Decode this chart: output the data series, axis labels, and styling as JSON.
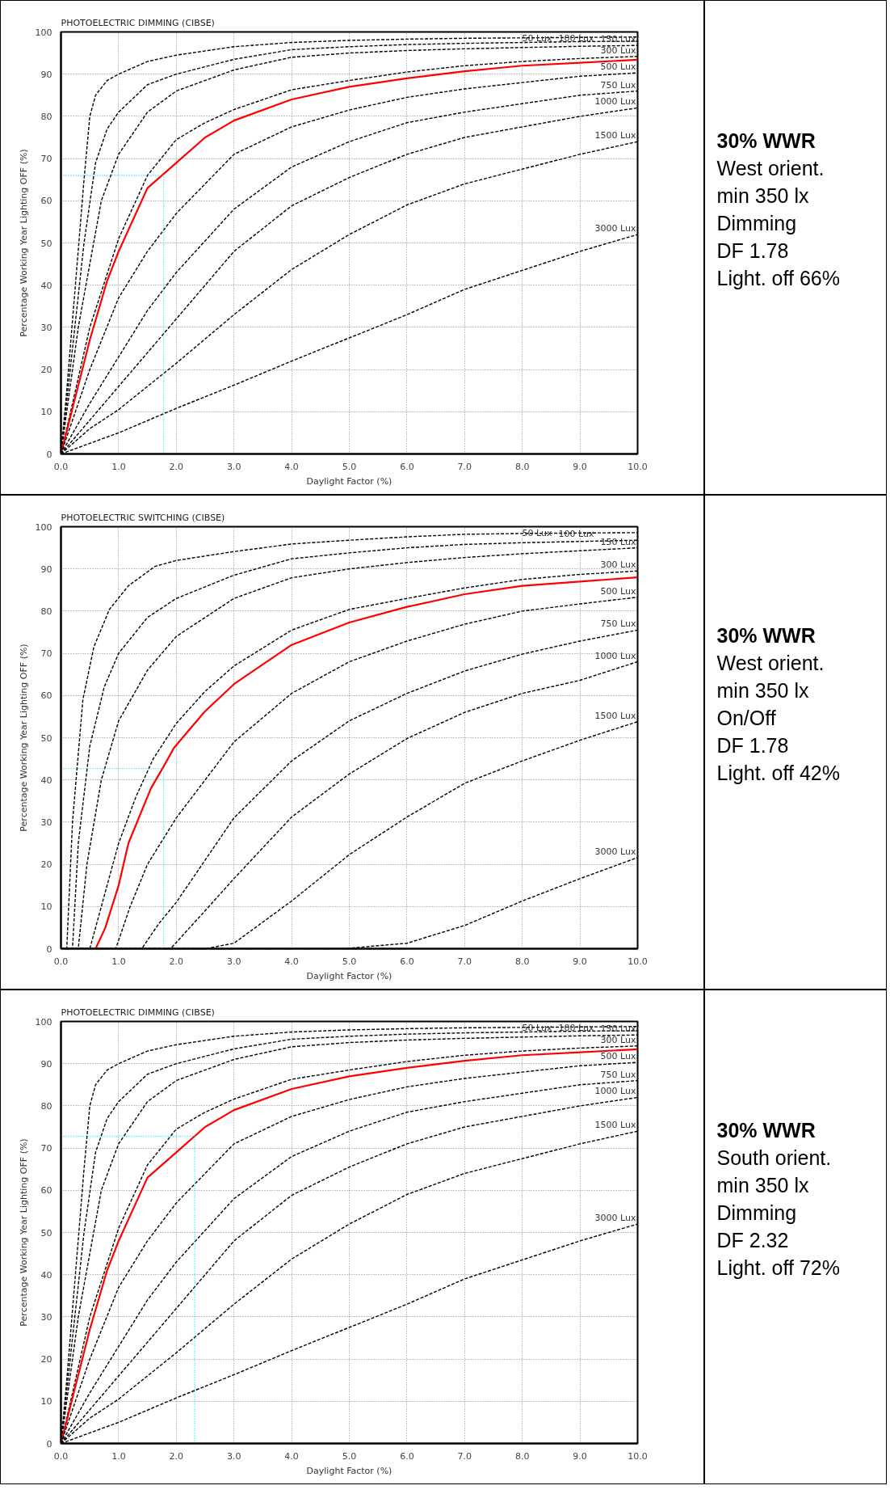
{
  "chart_data": [
    {
      "type": "line",
      "title": "PHOTOELECTRIC DIMMING (CIBSE)",
      "xlabel": "Daylight Factor (%)",
      "ylabel": "Percentage Working Year Lighting OFF (%)",
      "xlim": [
        0,
        10
      ],
      "ylim": [
        0,
        100
      ],
      "xticks": [
        {
          "value": 0,
          "label": "0.0"
        },
        {
          "value": 1,
          "label": "1.0"
        },
        {
          "value": 2,
          "label": "2.0"
        },
        {
          "value": 3,
          "label": "3.0"
        },
        {
          "value": 4,
          "label": "4.0"
        },
        {
          "value": 5,
          "label": "5.0"
        },
        {
          "value": 6,
          "label": "6.0"
        },
        {
          "value": 7,
          "label": "7.0"
        },
        {
          "value": 8,
          "label": "8.0"
        },
        {
          "value": 9,
          "label": "9.0"
        },
        {
          "value": 10,
          "label": "10.0"
        }
      ],
      "yticks": [
        0,
        10,
        20,
        30,
        40,
        50,
        60,
        70,
        80,
        90,
        100
      ],
      "grid": true,
      "series": [
        {
          "name": "50 Lux",
          "color": "#000000",
          "line_style": "dashed",
          "x": [
            0,
            0.1,
            0.25,
            0.4,
            0.5,
            0.6,
            0.8,
            1,
            1.5,
            2,
            3,
            4,
            5,
            6,
            7,
            8,
            9,
            10
          ],
          "values": [
            0,
            15,
            40,
            65,
            80,
            85,
            88.5,
            90,
            93,
            94.5,
            96.5,
            97.5,
            98,
            98.3,
            98.5,
            98.6,
            98.7,
            98.8
          ]
        },
        {
          "name": "100 Lux",
          "color": "#000000",
          "line_style": "dashed",
          "x": [
            0,
            0.2,
            0.4,
            0.6,
            0.8,
            1,
            1.5,
            2,
            3,
            4,
            5,
            6,
            7,
            8,
            9,
            10
          ],
          "values": [
            0,
            25,
            50,
            69,
            77,
            81,
            87.5,
            90,
            93.5,
            95.8,
            96.5,
            97,
            97.3,
            97.5,
            97.7,
            97.8
          ]
        },
        {
          "name": "150 Lux",
          "color": "#000000",
          "line_style": "dashed",
          "x": [
            0,
            0.3,
            0.5,
            0.7,
            1,
            1.5,
            2,
            3,
            4,
            5,
            6,
            7,
            8,
            9,
            10
          ],
          "values": [
            0,
            30,
            45,
            60,
            71,
            81,
            86,
            91,
            94,
            95,
            95.6,
            96,
            96.3,
            96.6,
            96.8
          ]
        },
        {
          "name": "300 Lux",
          "color": "#000000",
          "line_style": "dashed",
          "x": [
            0,
            0.5,
            1,
            1.5,
            2,
            2.5,
            3,
            4,
            5,
            6,
            7,
            8,
            9,
            10
          ],
          "values": [
            0,
            30,
            51,
            66,
            74.5,
            78.5,
            81.6,
            86.3,
            88.5,
            90.5,
            92,
            93,
            93.7,
            94.2
          ]
        },
        {
          "color": "#ff0000",
          "line_style": "solid",
          "x": [
            0,
            0.5,
            0.8,
            1,
            1.2,
            1.5,
            2,
            2.5,
            3,
            4,
            5,
            6,
            7,
            8,
            9,
            10
          ],
          "values": [
            0,
            27,
            41,
            48,
            54,
            63,
            69,
            75,
            79,
            84,
            87,
            89,
            90.7,
            92,
            92.7,
            93.4
          ]
        },
        {
          "name": "500 Lux",
          "color": "#000000",
          "line_style": "dashed",
          "x": [
            0,
            0.5,
            1,
            1.5,
            2,
            3,
            4,
            5,
            6,
            7,
            8,
            9,
            10
          ],
          "values": [
            0,
            20,
            37,
            48,
            57,
            71,
            77.5,
            81.5,
            84.5,
            86.5,
            88,
            89.5,
            90.3
          ]
        },
        {
          "name": "750 Lux",
          "color": "#000000",
          "line_style": "dashed",
          "x": [
            0,
            0.5,
            1,
            1.5,
            2,
            3,
            4,
            5,
            6,
            7,
            8,
            9,
            10
          ],
          "values": [
            0,
            12,
            23,
            34,
            43,
            58,
            68,
            74,
            78.5,
            81,
            83,
            85,
            86
          ]
        },
        {
          "name": "1000 Lux",
          "color": "#000000",
          "line_style": "dashed",
          "x": [
            0,
            0.5,
            1,
            1.5,
            2,
            3,
            4,
            5,
            6,
            7,
            8,
            9,
            10
          ],
          "values": [
            0,
            8,
            16,
            24,
            32,
            48,
            58.8,
            65.5,
            71,
            75,
            77.5,
            80,
            82
          ]
        },
        {
          "name": "1500 Lux",
          "color": "#000000",
          "line_style": "dashed",
          "x": [
            0,
            0.5,
            1,
            1.5,
            2,
            3,
            4,
            5,
            6,
            7,
            8,
            9,
            10
          ],
          "values": [
            0,
            6,
            10.5,
            16,
            21.5,
            33,
            43.7,
            52,
            59,
            64,
            67.5,
            71,
            74
          ]
        },
        {
          "name": "3000 Lux",
          "color": "#000000",
          "line_style": "dashed",
          "x": [
            0,
            0.5,
            1,
            2,
            3,
            4,
            5,
            6,
            7,
            8,
            9,
            10
          ],
          "values": [
            0,
            2.5,
            5,
            10.8,
            16.3,
            22,
            27.5,
            33,
            39,
            43.5,
            48,
            52
          ]
        }
      ],
      "ref_lines": [
        {
          "axis": "x",
          "value": 1.78,
          "color": "#00e5ee",
          "line_style": "dotted"
        },
        {
          "axis": "y",
          "value": 66,
          "color": "#00e5ee",
          "line_style": "dotted"
        }
      ]
    },
    {
      "type": "other",
      "title": "30% WWR",
      "annotations": [
        "West orient.",
        "min 350 lx",
        "Dimming",
        "DF 1.78",
        "Light. off 66%"
      ]
    },
    {
      "type": "line",
      "title": "PHOTOELECTRIC SWITCHING (CIBSE)",
      "xlabel": "Daylight Factor (%)",
      "ylabel": "Percentage Working Year Lighting OFF (%)",
      "xlim": [
        0,
        10
      ],
      "ylim": [
        0,
        100
      ],
      "xticks": [
        {
          "value": 0,
          "label": "0.0"
        },
        {
          "value": 1,
          "label": "1.0"
        },
        {
          "value": 2,
          "label": "2.0"
        },
        {
          "value": 3,
          "label": "3.0"
        },
        {
          "value": 4,
          "label": "4.0"
        },
        {
          "value": 5,
          "label": "5.0"
        },
        {
          "value": 6,
          "label": "6.0"
        },
        {
          "value": 7,
          "label": "7.0"
        },
        {
          "value": 8,
          "label": "8.0"
        },
        {
          "value": 9,
          "label": "9.0"
        },
        {
          "value": 10,
          "label": "10.0"
        }
      ],
      "yticks": [
        0,
        10,
        20,
        30,
        40,
        50,
        60,
        70,
        80,
        90,
        100
      ],
      "grid": true,
      "series": [
        {
          "name": "50 Lux",
          "color": "#000000",
          "line_style": "dashed",
          "x": [
            0,
            0.1,
            0.2,
            0.38,
            0.57,
            0.84,
            1.17,
            1.63,
            2,
            3,
            4,
            5,
            6,
            7,
            8,
            9,
            10
          ],
          "values": [
            0,
            0,
            30,
            59,
            71.5,
            80.4,
            86,
            90.6,
            92,
            94.1,
            95.9,
            96.8,
            97.6,
            98.2,
            98.4,
            98.5,
            98.6
          ]
        },
        {
          "name": "100 Lux",
          "color": "#000000",
          "line_style": "dashed",
          "x": [
            0,
            0.2,
            0.3,
            0.5,
            0.75,
            1,
            1.5,
            2,
            3,
            4,
            5,
            6,
            7,
            8,
            9,
            10
          ],
          "values": [
            0,
            0,
            25,
            48,
            62,
            70,
            78.5,
            83,
            88.5,
            92.4,
            93.8,
            95,
            95.8,
            96.2,
            96.5,
            96.8
          ]
        },
        {
          "name": "150 Lux",
          "color": "#000000",
          "line_style": "dashed",
          "x": [
            0,
            0.3,
            0.45,
            0.7,
            1,
            1.5,
            2,
            3,
            4,
            5,
            6,
            7,
            8,
            9,
            10
          ],
          "values": [
            0,
            0,
            20,
            40,
            54,
            66,
            74,
            83,
            87.9,
            90,
            91.5,
            92.7,
            93.6,
            94.3,
            95
          ]
        },
        {
          "name": "300 Lux",
          "color": "#000000",
          "line_style": "dashed",
          "x": [
            0,
            0.5,
            0.7,
            1,
            1.3,
            1.6,
            2,
            2.5,
            3,
            4,
            5,
            6,
            7,
            8,
            9,
            10
          ],
          "values": [
            0,
            0,
            10,
            25,
            36,
            45,
            53.4,
            61,
            67,
            75.5,
            80.4,
            83,
            85.5,
            87.5,
            88.7,
            89.5
          ]
        },
        {
          "color": "#ff0000",
          "line_style": "solid",
          "x": [
            0,
            0.6,
            0.77,
            1,
            1.17,
            1.56,
            1.76,
            1.96,
            2.48,
            3,
            4,
            5,
            6,
            7,
            8,
            9,
            10
          ],
          "values": [
            0,
            0,
            5,
            15,
            25,
            38,
            42.7,
            47.6,
            56,
            62.7,
            72,
            77.3,
            81,
            84,
            86,
            87,
            88
          ]
        },
        {
          "name": "500 Lux",
          "color": "#000000",
          "line_style": "dashed",
          "x": [
            0,
            0.95,
            1.2,
            1.5,
            2,
            2.5,
            3,
            4,
            5,
            6,
            7,
            8,
            9,
            10
          ],
          "values": [
            0,
            0,
            10,
            20,
            31,
            40,
            49,
            60.5,
            68,
            72.9,
            76.9,
            80,
            81.7,
            83.3
          ]
        },
        {
          "name": "750 Lux",
          "color": "#000000",
          "line_style": "dashed",
          "x": [
            0,
            1.4,
            1.7,
            2,
            2.5,
            3,
            4,
            5,
            6,
            7,
            8,
            9,
            10
          ],
          "values": [
            0,
            0,
            6,
            11,
            21,
            31,
            44.5,
            54,
            60.5,
            65.8,
            69.8,
            72.9,
            75.5
          ]
        },
        {
          "name": "1000 Lux",
          "color": "#000000",
          "line_style": "dashed",
          "x": [
            0,
            1.9,
            2,
            2.5,
            3,
            4,
            5,
            6,
            7,
            8,
            9,
            10
          ],
          "values": [
            0,
            0,
            1.5,
            9,
            16.6,
            31.2,
            41.4,
            49.8,
            56,
            60.5,
            63.6,
            68
          ]
        },
        {
          "name": "1500 Lux",
          "color": "#000000",
          "line_style": "dashed",
          "x": [
            0,
            2.5,
            3,
            4,
            5,
            6,
            7,
            8,
            9,
            10
          ],
          "values": [
            0,
            0,
            1.3,
            11.3,
            22.3,
            31.2,
            39.2,
            44.5,
            49.4,
            53.8
          ]
        },
        {
          "name": "3000 Lux",
          "color": "#000000",
          "line_style": "dashed",
          "x": [
            0,
            4.9,
            6,
            7,
            8,
            9,
            10
          ],
          "values": [
            0,
            0,
            1.3,
            5.5,
            11.3,
            16.6,
            21.6
          ]
        }
      ],
      "ref_lines": [
        {
          "axis": "x",
          "value": 1.78,
          "color": "#00e5ee",
          "line_style": "dotted"
        },
        {
          "axis": "y",
          "value": 42.7,
          "color": "#00e5ee",
          "line_style": "dotted"
        }
      ]
    },
    {
      "type": "other",
      "title": "30% WWR",
      "annotations": [
        "West orient.",
        "min 350 lx",
        "On/Off",
        "DF 1.78",
        "Light. off 42%"
      ]
    },
    {
      "type": "line",
      "title": "PHOTOELECTRIC DIMMING (CIBSE)",
      "xlabel": "Daylight Factor (%)",
      "ylabel": "Percentage Working Year Lighting OFF (%)",
      "xlim": [
        0,
        10
      ],
      "ylim": [
        0,
        100
      ],
      "xticks": [
        {
          "value": 0,
          "label": "0.0"
        },
        {
          "value": 1,
          "label": "1.0"
        },
        {
          "value": 2,
          "label": "2.0"
        },
        {
          "value": 3,
          "label": "3.0"
        },
        {
          "value": 4,
          "label": "4.0"
        },
        {
          "value": 5,
          "label": "5.0"
        },
        {
          "value": 6,
          "label": "6.0"
        },
        {
          "value": 7,
          "label": "7.0"
        },
        {
          "value": 8,
          "label": "8.0"
        },
        {
          "value": 9,
          "label": "9.0"
        },
        {
          "value": 10,
          "label": "10.0"
        }
      ],
      "yticks": [
        0,
        10,
        20,
        30,
        40,
        50,
        60,
        70,
        80,
        90,
        100
      ],
      "grid": true,
      "series": [
        {
          "name": "50 Lux",
          "color": "#000000",
          "line_style": "dashed",
          "x": [
            0,
            0.1,
            0.25,
            0.4,
            0.5,
            0.6,
            0.8,
            1,
            1.5,
            2,
            3,
            4,
            5,
            6,
            7,
            8,
            9,
            10
          ],
          "values": [
            0,
            15,
            40,
            65,
            80,
            85,
            88.5,
            90,
            93,
            94.5,
            96.5,
            97.5,
            98,
            98.3,
            98.5,
            98.6,
            98.7,
            98.8
          ]
        },
        {
          "name": "100 Lux",
          "color": "#000000",
          "line_style": "dashed",
          "x": [
            0,
            0.2,
            0.4,
            0.6,
            0.8,
            1,
            1.5,
            2,
            3,
            4,
            5,
            6,
            7,
            8,
            9,
            10
          ],
          "values": [
            0,
            25,
            50,
            69,
            77,
            81,
            87.5,
            90,
            93.5,
            95.8,
            96.5,
            97,
            97.3,
            97.5,
            97.7,
            97.8
          ]
        },
        {
          "name": "150 Lux",
          "color": "#000000",
          "line_style": "dashed",
          "x": [
            0,
            0.3,
            0.5,
            0.7,
            1,
            1.5,
            2,
            3,
            4,
            5,
            6,
            7,
            8,
            9,
            10
          ],
          "values": [
            0,
            30,
            45,
            60,
            71,
            81,
            86,
            91,
            94,
            95,
            95.6,
            96,
            96.3,
            96.6,
            96.8
          ]
        },
        {
          "name": "300 Lux",
          "color": "#000000",
          "line_style": "dashed",
          "x": [
            0,
            0.5,
            1,
            1.5,
            2,
            2.5,
            3,
            4,
            5,
            6,
            7,
            8,
            9,
            10
          ],
          "values": [
            0,
            30,
            51,
            66,
            74.5,
            78.5,
            81.6,
            86.3,
            88.5,
            90.5,
            92,
            93,
            93.7,
            94.2
          ]
        },
        {
          "color": "#ff0000",
          "line_style": "solid",
          "x": [
            0,
            0.5,
            0.8,
            1,
            1.2,
            1.5,
            2,
            2.5,
            3,
            4,
            5,
            6,
            7,
            8,
            9,
            10
          ],
          "values": [
            0,
            27,
            41,
            48,
            54,
            63,
            69,
            75,
            79,
            84,
            87,
            89,
            90.7,
            92,
            92.7,
            93.4
          ]
        },
        {
          "name": "500 Lux",
          "color": "#000000",
          "line_style": "dashed",
          "x": [
            0,
            0.5,
            1,
            1.5,
            2,
            3,
            4,
            5,
            6,
            7,
            8,
            9,
            10
          ],
          "values": [
            0,
            20,
            37,
            48,
            57,
            71,
            77.5,
            81.5,
            84.5,
            86.5,
            88,
            89.5,
            90.3
          ]
        },
        {
          "name": "750 Lux",
          "color": "#000000",
          "line_style": "dashed",
          "x": [
            0,
            0.5,
            1,
            1.5,
            2,
            3,
            4,
            5,
            6,
            7,
            8,
            9,
            10
          ],
          "values": [
            0,
            12,
            23,
            34,
            43,
            58,
            68,
            74,
            78.5,
            81,
            83,
            85,
            86
          ]
        },
        {
          "name": "1000 Lux",
          "color": "#000000",
          "line_style": "dashed",
          "x": [
            0,
            0.5,
            1,
            1.5,
            2,
            3,
            4,
            5,
            6,
            7,
            8,
            9,
            10
          ],
          "values": [
            0,
            8,
            16,
            24,
            32,
            48,
            58.8,
            65.5,
            71,
            75,
            77.5,
            80,
            82
          ]
        },
        {
          "name": "1500 Lux",
          "color": "#000000",
          "line_style": "dashed",
          "x": [
            0,
            0.5,
            1,
            1.5,
            2,
            3,
            4,
            5,
            6,
            7,
            8,
            9,
            10
          ],
          "values": [
            0,
            6,
            10.5,
            16,
            21.5,
            33,
            43.7,
            52,
            59,
            64,
            67.5,
            71,
            74
          ]
        },
        {
          "name": "3000 Lux",
          "color": "#000000",
          "line_style": "dashed",
          "x": [
            0,
            0.5,
            1,
            2,
            3,
            4,
            5,
            6,
            7,
            8,
            9,
            10
          ],
          "values": [
            0,
            2.5,
            5,
            10.8,
            16.3,
            22,
            27.5,
            33,
            39,
            43.5,
            48,
            52
          ]
        }
      ],
      "ref_lines": [
        {
          "axis": "x",
          "value": 2.32,
          "color": "#00e5ee",
          "line_style": "dotted"
        },
        {
          "axis": "y",
          "value": 72.8,
          "color": "#00e5ee",
          "line_style": "dotted"
        }
      ]
    },
    {
      "type": "other",
      "title": "30% WWR",
      "annotations": [
        "South orient.",
        "min 350 lx",
        "Dimming",
        "DF 2.32",
        "Light. off 72%"
      ]
    }
  ]
}
